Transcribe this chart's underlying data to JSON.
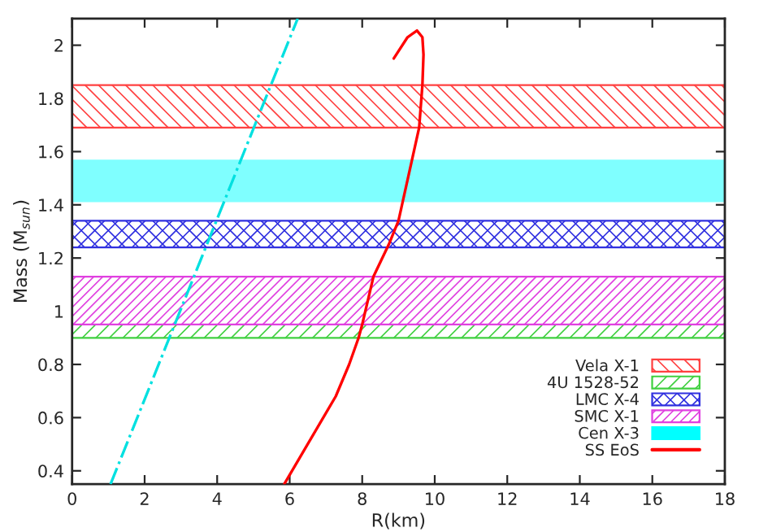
{
  "chart_data": {
    "type": "line",
    "xlabel": "R(km)",
    "ylabel": "Mass (M$_{sun}$)",
    "xlim": [
      0,
      18
    ],
    "ylim": [
      0.35,
      2.1
    ],
    "xticks": [
      0,
      2,
      4,
      6,
      8,
      10,
      12,
      14,
      16,
      18
    ],
    "yticks": [
      0.4,
      0.6,
      0.8,
      1,
      1.2,
      1.4,
      1.6,
      1.8,
      2
    ],
    "grid": false,
    "legend": "bottom right",
    "marker": "none",
    "bands": [
      {
        "axis": "y",
        "from": 1.69,
        "to": 1.85,
        "label": "Vela X-1",
        "color": "#ff4040"
      },
      {
        "axis": "y",
        "from": 0.9,
        "to": 0.95,
        "label": "4U 1528-52",
        "color": "#40d040"
      },
      {
        "axis": "y",
        "from": 1.24,
        "to": 1.34,
        "label": "LMC X-4",
        "color": "#3030e0"
      },
      {
        "axis": "y",
        "from": 0.95,
        "to": 1.13,
        "label": "SMC X-1",
        "color": "#e040e0"
      },
      {
        "axis": "y",
        "from": 1.41,
        "to": 1.57,
        "label": "Cen X-3",
        "color": "#00ffff"
      }
    ],
    "series": [
      {
        "color": "#00e0e0",
        "line_style": "dashed",
        "x": [
          1.06,
          6.22
        ],
        "values": [
          0.35,
          2.1
        ]
      },
      {
        "name": "SS EoS",
        "color": "#ff0000",
        "line_style": "solid",
        "x": [
          5.85,
          7.27,
          7.64,
          7.9,
          8.0,
          8.31,
          8.73,
          9.0,
          9.57,
          9.66,
          9.69,
          9.66,
          9.51,
          9.25,
          8.87
        ],
        "values": [
          0.35,
          0.68,
          0.8,
          0.9,
          0.95,
          1.13,
          1.25,
          1.34,
          1.69,
          1.85,
          1.965,
          2.03,
          2.055,
          2.03,
          1.95
        ]
      }
    ]
  }
}
